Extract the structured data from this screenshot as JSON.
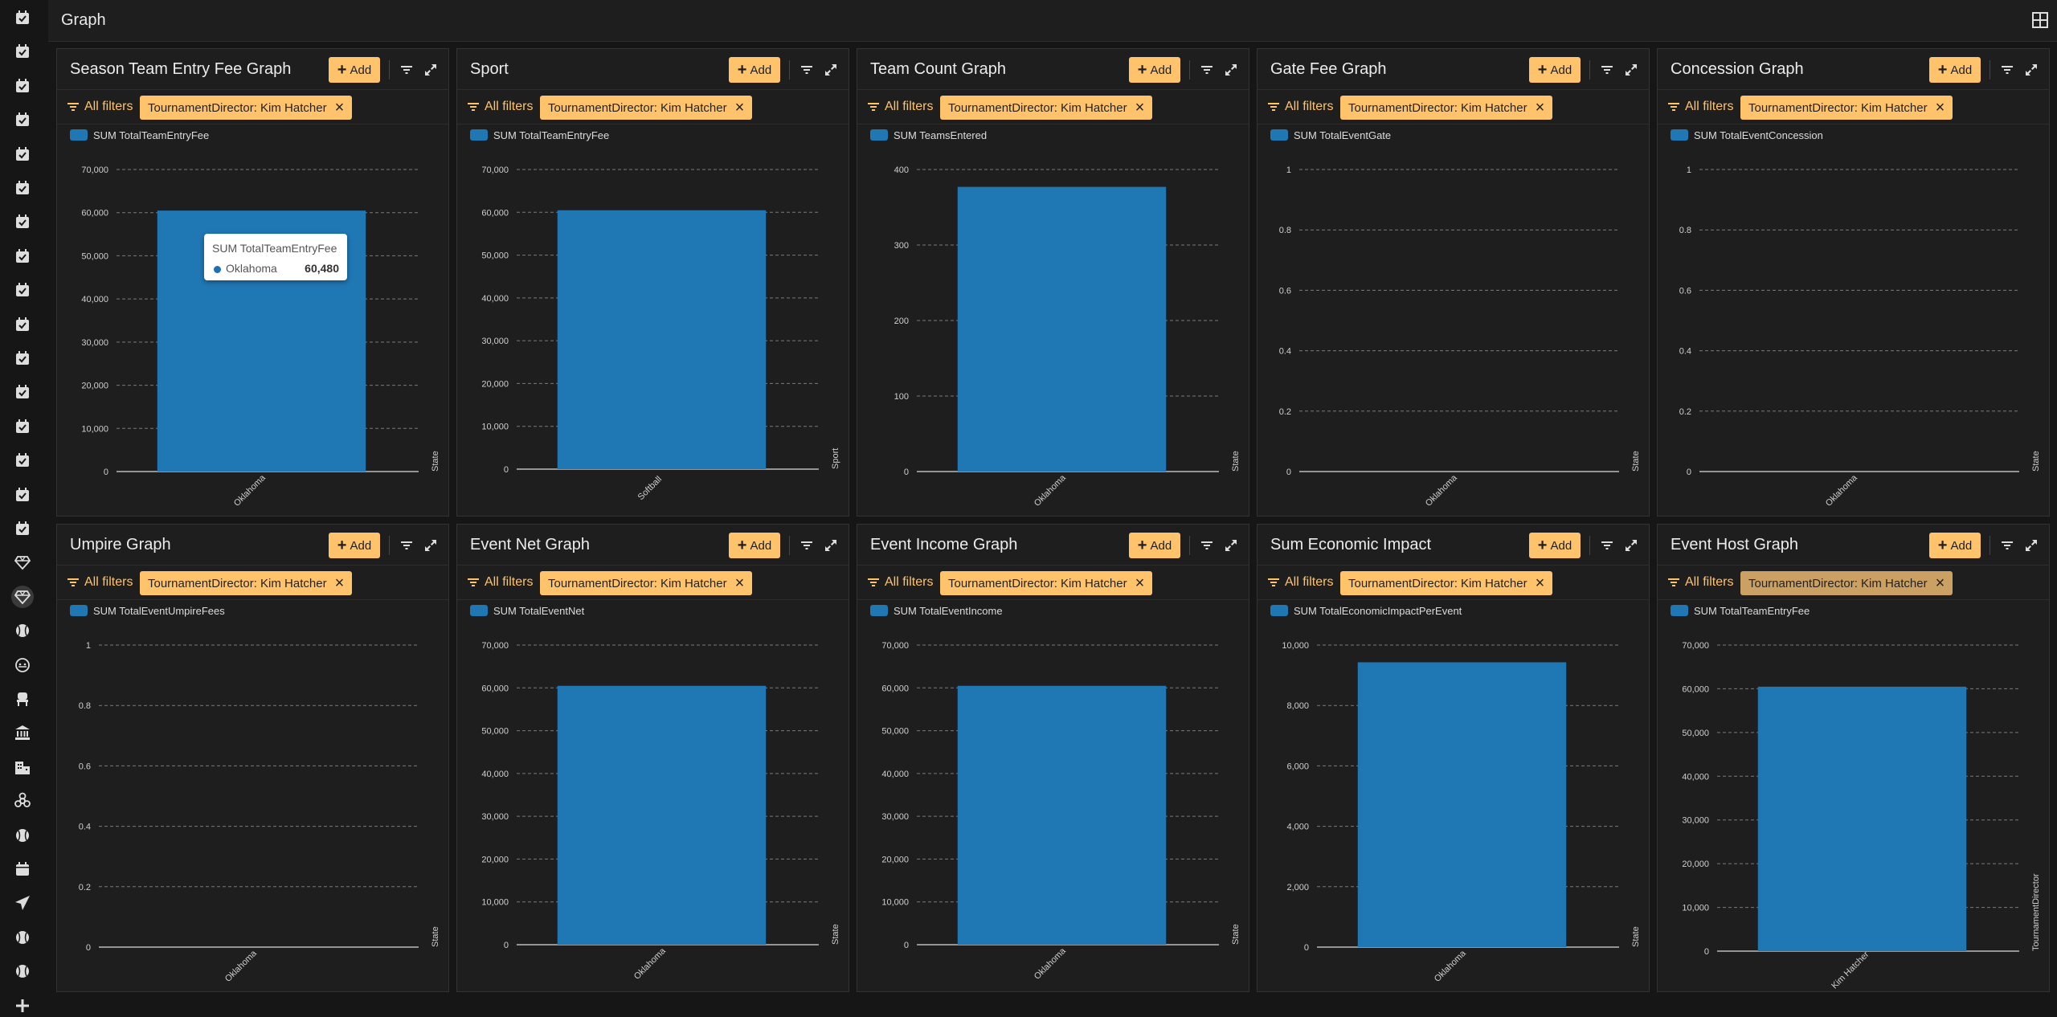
{
  "page": {
    "title": "Graph"
  },
  "colors": {
    "accent": "#ffc46b",
    "bar": "#1f77b4",
    "background": "#161616",
    "panel": "#1e1e1e"
  },
  "sidebar": {
    "icons": [
      "calendar-check-icon",
      "calendar-check-icon",
      "calendar-check-icon",
      "calendar-check-icon",
      "calendar-check-icon",
      "calendar-check-icon",
      "calendar-check-icon",
      "calendar-check-icon",
      "calendar-check-icon",
      "calendar-check-icon",
      "calendar-check-icon",
      "calendar-check-icon",
      "calendar-check-icon",
      "calendar-check-icon",
      "calendar-check-icon",
      "calendar-check-icon",
      "diamond-icon",
      "diamond-icon",
      "softball-icon",
      "face-icon",
      "seat-icon",
      "bank-icon",
      "hotel-icon",
      "biohazard-icon",
      "softball-icon",
      "calendar-icon",
      "send-icon",
      "softball-icon",
      "softball-icon",
      "plus-icon"
    ],
    "active_index": 17
  },
  "common": {
    "add_label": "Add",
    "all_filters_label": "All filters",
    "filter_chip": "TournamentDirector: Kim Hatcher"
  },
  "panels": [
    {
      "title": "Season Team Entry Fee Graph"
    },
    {
      "title": "Sport"
    },
    {
      "title": "Team Count Graph"
    },
    {
      "title": "Gate Fee Graph"
    },
    {
      "title": "Concession Graph"
    },
    {
      "title": "Umpire Graph"
    },
    {
      "title": "Event Net Graph"
    },
    {
      "title": "Event Income Graph"
    },
    {
      "title": "Sum Economic Impact"
    },
    {
      "title": "Event Host Graph"
    }
  ],
  "tooltip": {
    "title": "SUM TotalTeamEntryFee",
    "label": "Oklahoma",
    "value": "60,480"
  },
  "chart_data": [
    {
      "type": "bar",
      "title": "Season Team Entry Fee Graph",
      "legend": "SUM TotalTeamEntryFee",
      "xlabel": "State",
      "categories": [
        "Oklahoma"
      ],
      "values": [
        60480
      ],
      "ylim": [
        0,
        70000
      ],
      "yticks": [
        0,
        10000,
        20000,
        30000,
        40000,
        50000,
        60000,
        70000
      ],
      "grid": true,
      "legend_position": "top-left"
    },
    {
      "type": "bar",
      "title": "Sport",
      "legend": "SUM TotalTeamEntryFee",
      "xlabel": "Sport",
      "categories": [
        "Softball"
      ],
      "values": [
        60480
      ],
      "ylim": [
        0,
        70000
      ],
      "yticks": [
        0,
        10000,
        20000,
        30000,
        40000,
        50000,
        60000,
        70000
      ],
      "grid": true,
      "legend_position": "top-left"
    },
    {
      "type": "bar",
      "title": "Team Count Graph",
      "legend": "SUM TeamsEntered",
      "xlabel": "State",
      "categories": [
        "Oklahoma"
      ],
      "values": [
        377
      ],
      "ylim": [
        0,
        400
      ],
      "yticks": [
        0,
        100,
        200,
        300,
        400
      ],
      "grid": true,
      "legend_position": "top-left"
    },
    {
      "type": "bar",
      "title": "Gate Fee Graph",
      "legend": "SUM TotalEventGate",
      "xlabel": "State",
      "categories": [
        "Oklahoma"
      ],
      "values": [
        0
      ],
      "ylim": [
        0,
        1
      ],
      "yticks": [
        0,
        0.2,
        0.4,
        0.6,
        0.8,
        1
      ],
      "grid": true,
      "legend_position": "top-left"
    },
    {
      "type": "bar",
      "title": "Concession Graph",
      "legend": "SUM TotalEventConcession",
      "xlabel": "State",
      "categories": [
        "Oklahoma"
      ],
      "values": [
        0
      ],
      "ylim": [
        0,
        1
      ],
      "yticks": [
        0,
        0.2,
        0.4,
        0.6,
        0.8,
        1
      ],
      "grid": true,
      "legend_position": "top-left"
    },
    {
      "type": "bar",
      "title": "Umpire Graph",
      "legend": "SUM TotalEventUmpireFees",
      "xlabel": "State",
      "categories": [
        "Oklahoma"
      ],
      "values": [
        0
      ],
      "ylim": [
        0,
        1
      ],
      "yticks": [
        0,
        0.2,
        0.4,
        0.6,
        0.8,
        1
      ],
      "grid": true,
      "legend_position": "top-left"
    },
    {
      "type": "bar",
      "title": "Event Net Graph",
      "legend": "SUM TotalEventNet",
      "xlabel": "State",
      "categories": [
        "Oklahoma"
      ],
      "values": [
        60480
      ],
      "ylim": [
        0,
        70000
      ],
      "yticks": [
        0,
        10000,
        20000,
        30000,
        40000,
        50000,
        60000,
        70000
      ],
      "grid": true,
      "legend_position": "top-left"
    },
    {
      "type": "bar",
      "title": "Event Income Graph",
      "legend": "SUM TotalEventIncome",
      "xlabel": "State",
      "categories": [
        "Oklahoma"
      ],
      "values": [
        60480
      ],
      "ylim": [
        0,
        70000
      ],
      "yticks": [
        0,
        10000,
        20000,
        30000,
        40000,
        50000,
        60000,
        70000
      ],
      "grid": true,
      "legend_position": "top-left"
    },
    {
      "type": "bar",
      "title": "Sum Economic Impact",
      "legend": "SUM TotalEconomicImpactPerEvent",
      "xlabel": "State",
      "categories": [
        "Oklahoma"
      ],
      "values": [
        9430
      ],
      "ylim": [
        0,
        10000
      ],
      "yticks": [
        0,
        2000,
        4000,
        6000,
        8000,
        10000
      ],
      "grid": true,
      "legend_position": "top-left"
    },
    {
      "type": "bar",
      "title": "Event Host Graph",
      "legend": "SUM TotalTeamEntryFee",
      "xlabel": "TournamentDirector",
      "categories": [
        "Kim Hatcher"
      ],
      "values": [
        60480
      ],
      "ylim": [
        0,
        70000
      ],
      "yticks": [
        0,
        10000,
        20000,
        30000,
        40000,
        50000,
        60000,
        70000
      ],
      "grid": true,
      "legend_position": "top-left"
    }
  ]
}
